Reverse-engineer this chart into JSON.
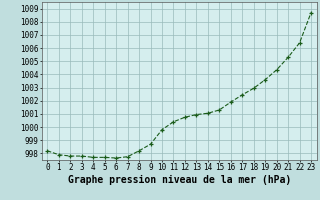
{
  "x": [
    0,
    1,
    2,
    3,
    4,
    5,
    6,
    7,
    8,
    9,
    10,
    11,
    12,
    13,
    14,
    15,
    16,
    17,
    18,
    19,
    20,
    21,
    22,
    23
  ],
  "y": [
    998.2,
    997.9,
    997.8,
    997.8,
    997.7,
    997.7,
    997.65,
    997.75,
    998.2,
    998.7,
    999.8,
    1000.4,
    1000.75,
    1000.95,
    1001.05,
    1001.3,
    1001.9,
    1002.45,
    1002.95,
    1003.6,
    1004.35,
    1005.3,
    1006.4,
    1008.7
  ],
  "ylim_min": 997.5,
  "ylim_max": 1009.5,
  "yticks": [
    998,
    999,
    1000,
    1001,
    1002,
    1003,
    1004,
    1005,
    1006,
    1007,
    1008,
    1009
  ],
  "xtick_labels": [
    "0",
    "1",
    "2",
    "3",
    "4",
    "5",
    "6",
    "7",
    "8",
    "9",
    "10",
    "11",
    "12",
    "13",
    "14",
    "15",
    "16",
    "17",
    "18",
    "19",
    "20",
    "21",
    "22",
    "23"
  ],
  "xlabel": "Graphe pression niveau de la mer (hPa)",
  "line_color": "#1a5c1a",
  "bg_plot": "#d5eeee",
  "bg_fig": "#c0dede",
  "grid_color": "#99bbbb",
  "tick_fontsize": 5.5,
  "xlabel_fontsize": 7.0
}
